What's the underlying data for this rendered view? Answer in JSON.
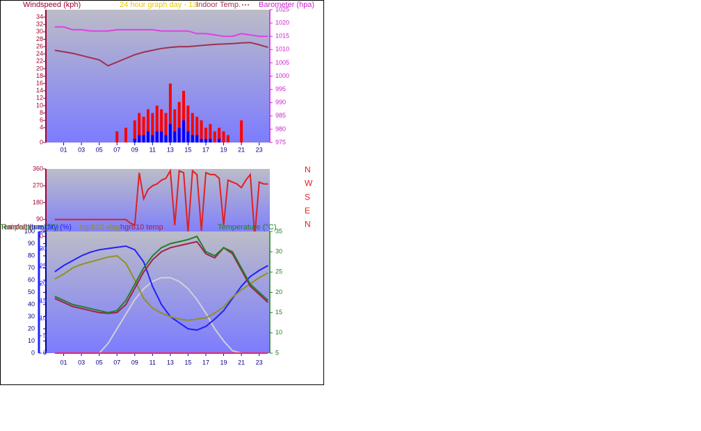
{
  "chart_data": [
    {
      "type": "combo",
      "title": "24 hour graph day - 13",
      "ylabel": "Windspeed (kph)",
      "y2label": "Barometer (hpa)",
      "x": [
        0,
        1,
        2,
        3,
        4,
        5,
        6,
        7,
        8,
        9,
        10,
        11,
        12,
        13,
        14,
        15,
        16,
        17,
        18,
        19,
        20,
        21,
        22,
        23,
        24
      ],
      "xlim": [
        -1,
        24.2
      ],
      "xticks": [
        {
          "value": 1,
          "label": "01"
        },
        {
          "value": 3,
          "label": "03"
        },
        {
          "value": 5,
          "label": "05"
        },
        {
          "value": 7,
          "label": "07"
        },
        {
          "value": 9,
          "label": "09"
        },
        {
          "value": 11,
          "label": "11"
        },
        {
          "value": 13,
          "label": "13"
        },
        {
          "value": 15,
          "label": "15"
        },
        {
          "value": 17,
          "label": "17"
        },
        {
          "value": 19,
          "label": "19"
        },
        {
          "value": 21,
          "label": "21"
        },
        {
          "value": 23,
          "label": "23"
        }
      ],
      "ylim": [
        0,
        36
      ],
      "yticks": [
        0,
        4,
        6,
        8,
        10,
        12,
        14,
        16,
        18,
        20,
        22,
        24,
        26,
        28,
        30,
        32,
        34
      ],
      "y2lim": [
        975,
        1025
      ],
      "y2ticks": [
        975,
        980,
        985,
        990,
        995,
        1000,
        1005,
        1010,
        1015,
        1020,
        1025
      ],
      "series": [
        {
          "type": "bar",
          "color": "#ff0000",
          "x": [
            7,
            7.5,
            8,
            8.5,
            9,
            9.5,
            10,
            10.5,
            11,
            11.5,
            12,
            12.5,
            13,
            13.5,
            14,
            14.5,
            15,
            15.5,
            16,
            16.5,
            17,
            17.5,
            18,
            18.5,
            19,
            19.5,
            20,
            20.5,
            21,
            21.5
          ],
          "values": [
            3,
            0,
            4,
            0,
            6,
            8,
            7,
            9,
            8,
            10,
            9,
            8,
            16,
            9,
            11,
            14,
            10,
            8,
            7,
            6,
            4,
            5,
            3,
            4,
            3,
            2,
            0,
            0,
            6,
            0
          ]
        },
        {
          "type": "bar",
          "color": "#0000ff",
          "x": [
            7,
            7.5,
            8,
            8.5,
            9,
            9.5,
            10,
            10.5,
            11,
            11.5,
            12,
            12.5,
            13,
            13.5,
            14,
            14.5,
            15,
            15.5,
            16,
            16.5,
            17,
            17.5,
            18,
            18.5,
            19,
            19.5,
            20,
            20.5,
            21,
            21.5
          ],
          "values": [
            0,
            0,
            0,
            0,
            1,
            2,
            2,
            3,
            2,
            3,
            3,
            2,
            5,
            3,
            4,
            6,
            3,
            2,
            2,
            1,
            1,
            1,
            0,
            1,
            0,
            0,
            0,
            0,
            0,
            0
          ]
        },
        {
          "type": "line",
          "color": "#e040e0",
          "axis": "y2",
          "values": [
            1018.5,
            1018.5,
            1017.5,
            1017.5,
            1017,
            1017,
            1017,
            1017.5,
            1017.5,
            1017.5,
            1017.5,
            1017.5,
            1017,
            1017,
            1017,
            1017,
            1016,
            1016,
            1015.5,
            1015,
            1015,
            1016,
            1015.5,
            1015,
            1015
          ]
        },
        {
          "type": "line",
          "name": "Indoor Temp.",
          "color": "#a03050",
          "values": [
            25,
            24.6,
            24.2,
            23.6,
            23,
            22.4,
            20.8,
            21.8,
            22.8,
            23.8,
            24.5,
            25,
            25.5,
            25.8,
            26,
            26,
            26.2,
            26.4,
            26.6,
            26.7,
            26.8,
            27,
            27.1,
            26.5,
            25.8
          ]
        }
      ]
    },
    {
      "type": "combo",
      "compass": [
        "N",
        "W",
        "S",
        "E",
        "N"
      ],
      "x": [
        0,
        0.5,
        1,
        1.5,
        2,
        2.5,
        3,
        3.5,
        4,
        4.5,
        5,
        5.5,
        6,
        6.5,
        7,
        7.5,
        8,
        8.5,
        9,
        9.5,
        10,
        10.5,
        11,
        11.5,
        12,
        12.5,
        13,
        13.5,
        14,
        14.5,
        15,
        15.5,
        16,
        16.5,
        17,
        17.5,
        18,
        18.5,
        19,
        19.5,
        20,
        20.5,
        21,
        21.5,
        22,
        22.5,
        23,
        23.5,
        24
      ],
      "xlim": [
        -1,
        24.2
      ],
      "ylim": [
        0,
        360
      ],
      "yticks": [
        0,
        90,
        180,
        270,
        360
      ],
      "series": [
        {
          "type": "line",
          "color": "#e02020",
          "values": [
            90,
            90,
            90,
            90,
            90,
            90,
            90,
            90,
            90,
            90,
            90,
            90,
            90,
            90,
            90,
            90,
            90,
            70,
            60,
            340,
            200,
            250,
            270,
            280,
            300,
            310,
            350,
            60,
            350,
            340,
            20,
            350,
            330,
            30,
            340,
            330,
            330,
            310,
            60,
            300,
            290,
            280,
            260,
            300,
            330,
            0,
            290,
            280,
            280
          ]
        }
      ]
    },
    {
      "type": "combo",
      "ylabel": "Rainfall (mm)",
      "y2label": "Temperature (°C)",
      "x": [
        0,
        1,
        2,
        3,
        4,
        5,
        6,
        7,
        8,
        9,
        10,
        11,
        12,
        13,
        14,
        15,
        16,
        17,
        18,
        19,
        20,
        21,
        22,
        23,
        24
      ],
      "xlim": [
        -1,
        24.2
      ],
      "xticks": [
        {
          "value": 1,
          "label": "01"
        },
        {
          "value": 3,
          "label": "03"
        },
        {
          "value": 5,
          "label": "05"
        },
        {
          "value": 7,
          "label": "07"
        },
        {
          "value": 9,
          "label": "09"
        },
        {
          "value": 11,
          "label": "11"
        },
        {
          "value": 13,
          "label": "13"
        },
        {
          "value": 15,
          "label": "15"
        },
        {
          "value": 17,
          "label": "17"
        },
        {
          "value": 19,
          "label": "19"
        },
        {
          "value": 21,
          "label": "21"
        },
        {
          "value": 23,
          "label": "23"
        }
      ],
      "ylim": [
        0,
        100
      ],
      "yticks": [
        0,
        10,
        20,
        30,
        40,
        50,
        60,
        70,
        80,
        90,
        100
      ],
      "y3lim": [
        0,
        35
      ],
      "y3ticks": [
        0,
        5,
        10,
        15,
        20,
        25,
        30,
        35
      ],
      "y2lim": [
        5,
        35
      ],
      "y2ticks": [
        5,
        10,
        15,
        20,
        25,
        30,
        35
      ],
      "series": [
        {
          "type": "line",
          "color": "#d0d0d8",
          "values": [
            null,
            null,
            null,
            null,
            null,
            0,
            8,
            20,
            32,
            44,
            53,
            59,
            62,
            62,
            59,
            53,
            44,
            33,
            20,
            10,
            2,
            0,
            null,
            null,
            null
          ]
        },
        {
          "type": "line",
          "color": "#ff2060",
          "values": [
            0,
            0,
            0,
            0,
            0,
            0,
            0,
            0,
            0,
            0,
            0,
            0,
            0,
            0,
            0,
            0,
            0,
            0,
            0,
            0,
            0,
            0,
            0,
            0,
            0
          ]
        },
        {
          "type": "line",
          "name": "Humidity (%)",
          "color": "#2020ff",
          "values": [
            67,
            72,
            76,
            80,
            83,
            85,
            86,
            87,
            88,
            85,
            75,
            55,
            40,
            30,
            25,
            20,
            19,
            22,
            28,
            35,
            45,
            55,
            63,
            68,
            72
          ]
        },
        {
          "type": "line",
          "name": "hgr810 vlag",
          "color": "#909020",
          "values": [
            61,
            65,
            70,
            73,
            75,
            77,
            79,
            80,
            74,
            60,
            45,
            37,
            33,
            30,
            28,
            27,
            28,
            29,
            33,
            38,
            46,
            52,
            57,
            62,
            66
          ]
        },
        {
          "type": "line",
          "name": "hgr810 temp",
          "color": "#a02050",
          "axis": "y2",
          "values": [
            18.5,
            17.5,
            16.5,
            16,
            15.5,
            15,
            14.8,
            15,
            17,
            21,
            25,
            28,
            30,
            31,
            31.5,
            32,
            32.5,
            29.5,
            28.5,
            31,
            29.5,
            25.5,
            21.5,
            19.5,
            17.5
          ]
        },
        {
          "type": "line",
          "name": "Temperature (°C)",
          "color": "#208020",
          "axis": "y2",
          "values": [
            19,
            18,
            17,
            16.5,
            16,
            15.5,
            15,
            15.5,
            18,
            22,
            26,
            29,
            31,
            32,
            32.5,
            33,
            33.8,
            30,
            29,
            31,
            30,
            26,
            22,
            20,
            18
          ]
        }
      ]
    }
  ]
}
